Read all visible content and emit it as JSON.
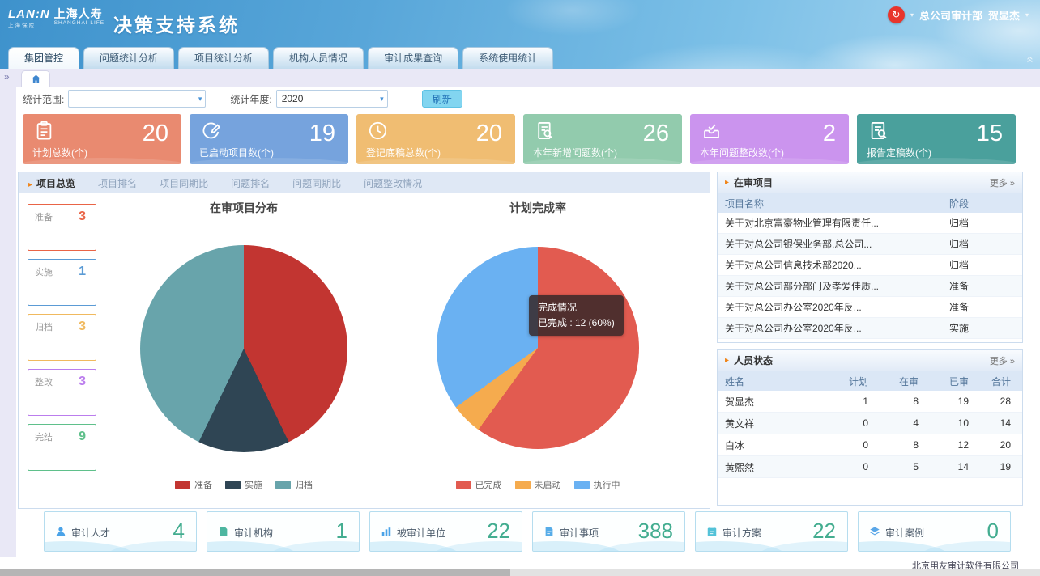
{
  "header": {
    "brand_mark": "LAN:N",
    "brand_sub": "上海保险",
    "brand": "上海人寿",
    "brand_en": "SHANGHAI LIFE",
    "title": "决策支持系统",
    "user_org": "总公司审计部",
    "user_name": "贺显杰",
    "accent_red": "#e8352c"
  },
  "nav_tabs": [
    {
      "label": "集团管控",
      "active": true
    },
    {
      "label": "问题统计分析",
      "active": false
    },
    {
      "label": "项目统计分析",
      "active": false
    },
    {
      "label": "机构人员情况",
      "active": false
    },
    {
      "label": "审计成果查询",
      "active": false
    },
    {
      "label": "系统使用统计",
      "active": false
    }
  ],
  "breadcrumb": {
    "collapse_icon": "»"
  },
  "filters": {
    "scope_label": "统计范围:",
    "scope_value": "",
    "year_label": "统计年度:",
    "year_value": "2020",
    "refresh_label": "刷新"
  },
  "stat_cards": [
    {
      "label": "计划总数(个)",
      "value": "20",
      "color": "#e98a70",
      "icon": "clipboard-icon"
    },
    {
      "label": "已启动项目数(个)",
      "value": "19",
      "color": "#76a3dd",
      "icon": "edit-circle-icon"
    },
    {
      "label": "登记底稿总数(个)",
      "value": "20",
      "color": "#f0bd72",
      "icon": "clock-icon"
    },
    {
      "label": "本年新增问题数(个)",
      "value": "26",
      "color": "#92cbad",
      "icon": "doc-search-icon"
    },
    {
      "label": "本年问题整改数(个)",
      "value": "2",
      "color": "#cb94ee",
      "icon": "inbox-check-icon"
    },
    {
      "label": "报告定稿数(个)",
      "value": "15",
      "color": "#4aa09c",
      "icon": "report-search-icon"
    }
  ],
  "sub_tabs": [
    {
      "label": "项目总览",
      "active": true
    },
    {
      "label": "项目排名",
      "active": false
    },
    {
      "label": "项目同期比",
      "active": false
    },
    {
      "label": "问题排名",
      "active": false
    },
    {
      "label": "问题同期比",
      "active": false
    },
    {
      "label": "问题整改情况",
      "active": false
    }
  ],
  "status_boxes": [
    {
      "label": "准备",
      "value": "3",
      "color": "#e96446"
    },
    {
      "label": "实施",
      "value": "1",
      "color": "#5b9bd5"
    },
    {
      "label": "归档",
      "value": "3",
      "color": "#f0b95e"
    },
    {
      "label": "整改",
      "value": "3",
      "color": "#bb7ded"
    },
    {
      "label": "完结",
      "value": "9",
      "color": "#5fc08b"
    }
  ],
  "chart_data": [
    {
      "type": "pie",
      "title": "在审项目分布",
      "labels": [
        "准备",
        "实施",
        "归档"
      ],
      "values": [
        3,
        1,
        3
      ],
      "colors": [
        "#c23531",
        "#2f4554",
        "#68a4ab"
      ],
      "legend_position": "bottom"
    },
    {
      "type": "pie",
      "title": "计划完成率",
      "labels": [
        "已完成",
        "未启动",
        "执行中"
      ],
      "values": [
        12,
        1,
        7
      ],
      "percentages": [
        "60%",
        "5%",
        "35%"
      ],
      "colors": [
        "#e25b50",
        "#f5ab4e",
        "#6ab1f2"
      ],
      "legend_position": "bottom",
      "tooltip": {
        "title": "完成情况",
        "text": "已完成 : 12 (60%)"
      }
    }
  ],
  "panels": {
    "projects": {
      "title": "在审项目",
      "more": "更多 »",
      "columns": [
        "项目名称",
        "阶段"
      ],
      "rows": [
        [
          "关于对北京富豪物业管理有限责任...",
          "归档"
        ],
        [
          "关于对总公司银保业务部,总公司...",
          "归档"
        ],
        [
          "关于对总公司信息技术部2020...",
          "归档"
        ],
        [
          "关于对总公司部分部门及孝爱佳质...",
          "准备"
        ],
        [
          "关于对总公司办公室2020年反...",
          "准备"
        ],
        [
          "关于对总公司办公室2020年反...",
          "实施"
        ]
      ]
    },
    "staff": {
      "title": "人员状态",
      "more": "更多 »",
      "columns": [
        "姓名",
        "计划",
        "在审",
        "已审",
        "合计"
      ],
      "rows": [
        [
          "贺显杰",
          "1",
          "8",
          "19",
          "28"
        ],
        [
          "黄文祥",
          "0",
          "4",
          "10",
          "14"
        ],
        [
          "白冰",
          "0",
          "8",
          "12",
          "20"
        ],
        [
          "黄熙然",
          "0",
          "5",
          "14",
          "19"
        ]
      ]
    }
  },
  "bottom_stats": [
    {
      "label": "审计人才",
      "value": "4",
      "icon": "user-icon"
    },
    {
      "label": "审计机构",
      "value": "1",
      "icon": "org-file-icon"
    },
    {
      "label": "被审计单位",
      "value": "22",
      "icon": "bar-chart-icon"
    },
    {
      "label": "审计事项",
      "value": "388",
      "icon": "file-icon"
    },
    {
      "label": "审计方案",
      "value": "22",
      "icon": "calendar-icon"
    },
    {
      "label": "审计案例",
      "value": "0",
      "icon": "layers-icon"
    }
  ],
  "footer": {
    "company": "北京用友审计软件有限公司"
  }
}
